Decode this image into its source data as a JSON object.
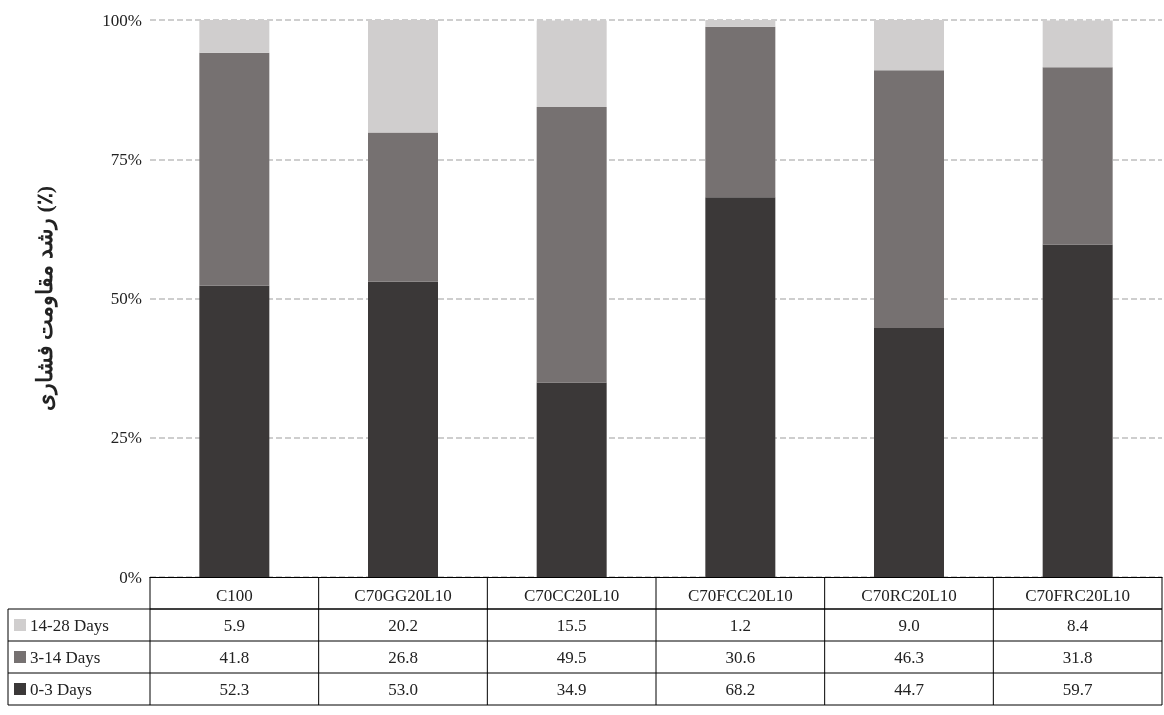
{
  "chart_data": {
    "type": "bar",
    "stacked": true,
    "ylabel": "رشد مقاومت فشاری (٪)",
    "categories": [
      "C100",
      "C70GG20L10",
      "C70CC20L10",
      "C70FCC20L10",
      "C70RC20L10",
      "C70FRC20L10"
    ],
    "series": [
      {
        "name": "0-3 Days",
        "color": "#3b3838",
        "values": [
          52.3,
          53.0,
          34.9,
          68.2,
          44.7,
          59.7
        ],
        "value_labels": [
          "52.3",
          "53.0",
          "34.9",
          "68.2",
          "44.7",
          "59.7"
        ]
      },
      {
        "name": "3-14 Days",
        "color": "#767171",
        "values": [
          41.8,
          26.8,
          49.5,
          30.6,
          46.3,
          31.8
        ],
        "value_labels": [
          "41.8",
          "26.8",
          "49.5",
          "30.6",
          "46.3",
          "31.8"
        ]
      },
      {
        "name": "14-28 Days",
        "color": "#d0cece",
        "values": [
          5.9,
          20.2,
          15.5,
          1.2,
          9.0,
          8.4
        ],
        "value_labels": [
          "5.9",
          "20.2",
          "15.5",
          "1.2",
          "9.0",
          "8.4"
        ]
      }
    ],
    "ylim": [
      0,
      100
    ],
    "yticks": [
      {
        "value": 0,
        "label": "0%"
      },
      {
        "value": 25,
        "label": "25%"
      },
      {
        "value": 50,
        "label": "50%"
      },
      {
        "value": 75,
        "label": "75%"
      },
      {
        "value": 100,
        "label": "100%"
      }
    ],
    "grid": "y",
    "legend": "bottom"
  }
}
